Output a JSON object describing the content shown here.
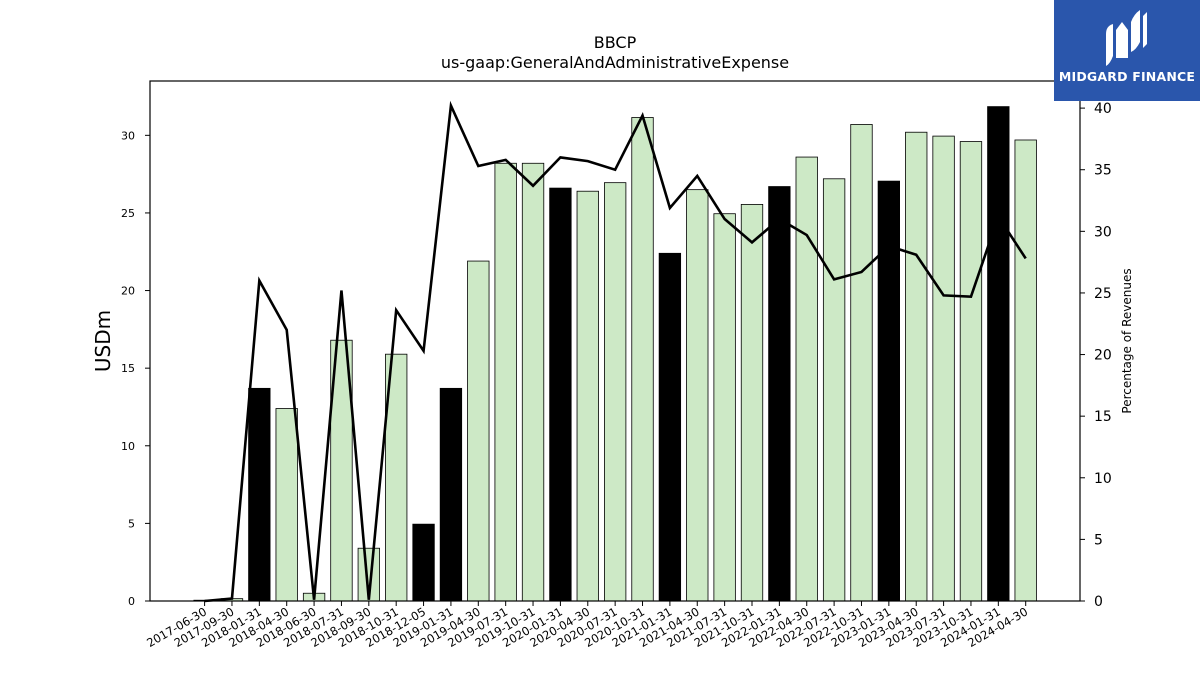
{
  "brand": {
    "name": "MIDGARD FINANCE",
    "bg": "#2a56ac"
  },
  "colors": {
    "bar_normal": "#cde9c6",
    "bar_highlight": "#000000",
    "bar_edge": "#000000",
    "line": "#000000"
  },
  "chart_data": {
    "type": "bar",
    "title": "BBCP",
    "subtitle": "us-gaap:GeneralAndAdministrativeExpense",
    "ylabel": "USDm",
    "y2label": "Percentage of Revenues",
    "ylim": [
      0,
      33.5
    ],
    "y2lim": [
      0,
      42.2
    ],
    "yticks": [
      0,
      5,
      10,
      15,
      20,
      25,
      30
    ],
    "y2ticks": [
      0,
      5,
      10,
      15,
      20,
      25,
      30,
      35,
      40
    ],
    "grid": false,
    "categories": [
      "2017-06-30",
      "2017-09-30",
      "2018-01-31",
      "2018-04-30",
      "2018-06-30",
      "2018-07-31",
      "2018-09-30",
      "2018-10-31",
      "2018-12-05",
      "2019-01-31",
      "2019-04-30",
      "2019-07-31",
      "2019-10-31",
      "2020-01-31",
      "2020-04-30",
      "2020-07-31",
      "2020-10-31",
      "2021-01-31",
      "2021-04-30",
      "2021-07-31",
      "2021-10-31",
      "2022-01-31",
      "2022-04-30",
      "2022-07-31",
      "2022-10-31",
      "2023-01-31",
      "2023-04-30",
      "2023-07-31",
      "2023-10-31",
      "2024-01-31",
      "2024-04-30"
    ],
    "series": [
      {
        "chart_type": "bar",
        "axis": "left",
        "values": [
          0.05,
          0.15,
          13.7,
          12.4,
          0.5,
          16.8,
          3.4,
          15.9,
          4.95,
          13.7,
          21.9,
          28.2,
          28.2,
          26.6,
          26.4,
          26.95,
          31.15,
          22.4,
          26.5,
          24.95,
          25.55,
          26.7,
          28.6,
          27.2,
          30.7,
          27.05,
          30.2,
          29.95,
          29.6,
          31.85,
          29.7
        ],
        "highlight": [
          false,
          false,
          true,
          false,
          false,
          false,
          false,
          false,
          true,
          true,
          false,
          false,
          false,
          true,
          false,
          false,
          false,
          true,
          false,
          false,
          false,
          true,
          false,
          false,
          false,
          true,
          false,
          false,
          false,
          true,
          false
        ]
      },
      {
        "chart_type": "line",
        "axis": "right",
        "values": [
          0,
          0.2,
          26.0,
          22.0,
          0.1,
          25.2,
          0.1,
          23.6,
          20.3,
          40.2,
          35.3,
          35.8,
          33.7,
          36.0,
          35.7,
          35.0,
          39.4,
          31.9,
          34.5,
          31.0,
          29.1,
          31.0,
          29.7,
          26.1,
          26.7,
          28.8,
          28.1,
          24.8,
          24.7,
          31.2,
          27.8
        ]
      }
    ]
  }
}
